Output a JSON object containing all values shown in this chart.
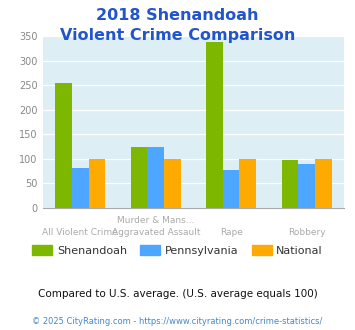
{
  "title_line1": "2018 Shenandoah",
  "title_line2": "Violent Crime Comparison",
  "cat_labels_top": [
    "",
    "Murder & Mans...",
    "",
    ""
  ],
  "cat_labels_bottom": [
    "All Violent Crime",
    "Aggravated Assault",
    "Rape",
    "Robbery"
  ],
  "shenandoah": [
    255,
    125,
    338,
    98
  ],
  "pennsylvania": [
    81,
    125,
    78,
    89
  ],
  "national": [
    100,
    100,
    100,
    100
  ],
  "colors": {
    "shenandoah": "#7db700",
    "pennsylvania": "#4da6ff",
    "national": "#ffaa00"
  },
  "ylim": [
    0,
    350
  ],
  "yticks": [
    0,
    50,
    100,
    150,
    200,
    250,
    300,
    350
  ],
  "plot_bg": "#ddeef5",
  "title_color": "#2255cc",
  "footer_note": "Compared to U.S. average. (U.S. average equals 100)",
  "copyright": "© 2025 CityRating.com - https://www.cityrating.com/crime-statistics/",
  "legend_labels": [
    "Shenandoah",
    "Pennsylvania",
    "National"
  ],
  "bar_width": 0.22
}
